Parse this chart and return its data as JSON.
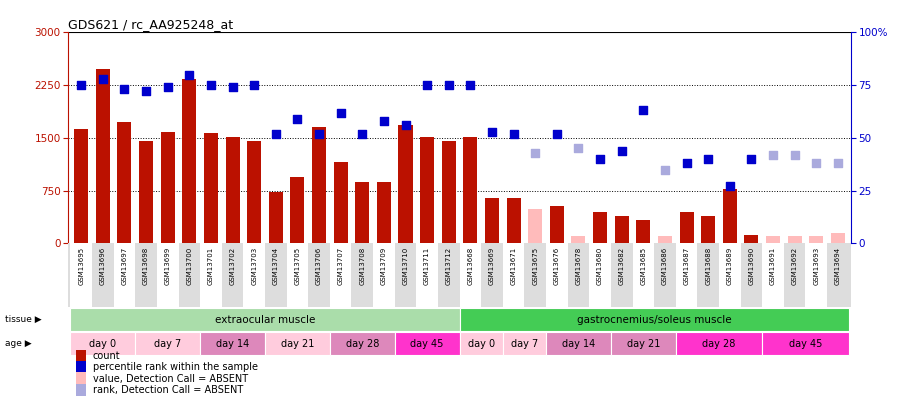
{
  "title": "GDS621 / rc_AA925248_at",
  "samples": [
    "GSM13695",
    "GSM13696",
    "GSM13697",
    "GSM13698",
    "GSM13699",
    "GSM13700",
    "GSM13701",
    "GSM13702",
    "GSM13703",
    "GSM13704",
    "GSM13705",
    "GSM13706",
    "GSM13707",
    "GSM13708",
    "GSM13709",
    "GSM13710",
    "GSM13711",
    "GSM13712",
    "GSM13668",
    "GSM13669",
    "GSM13671",
    "GSM13675",
    "GSM13676",
    "GSM13678",
    "GSM13680",
    "GSM13682",
    "GSM13685",
    "GSM13686",
    "GSM13687",
    "GSM13688",
    "GSM13689",
    "GSM13690",
    "GSM13691",
    "GSM13692",
    "GSM13693",
    "GSM13694"
  ],
  "count_present": [
    1620,
    2480,
    1720,
    1460,
    1580,
    2340,
    1570,
    1520,
    1460,
    730,
    950,
    1660,
    1160,
    870,
    870,
    1680,
    1520,
    1460,
    1520,
    650,
    640,
    null,
    530,
    null,
    440,
    390,
    330,
    null,
    450,
    390,
    780,
    115,
    null,
    null,
    null,
    null
  ],
  "count_absent": [
    null,
    null,
    null,
    null,
    null,
    null,
    null,
    null,
    null,
    null,
    null,
    null,
    null,
    null,
    null,
    null,
    null,
    null,
    null,
    null,
    null,
    490,
    null,
    105,
    null,
    null,
    null,
    110,
    null,
    null,
    null,
    null,
    100,
    110,
    110,
    145
  ],
  "rank_present": [
    75,
    78,
    73,
    72,
    74,
    80,
    75,
    74,
    75,
    52,
    59,
    52,
    62,
    52,
    58,
    56,
    75,
    75,
    75,
    53,
    52,
    null,
    52,
    null,
    40,
    44,
    63,
    null,
    38,
    40,
    27,
    40,
    null,
    null,
    null,
    null
  ],
  "rank_absent": [
    null,
    null,
    null,
    null,
    null,
    null,
    null,
    null,
    null,
    null,
    null,
    null,
    null,
    null,
    null,
    null,
    null,
    null,
    null,
    null,
    null,
    43,
    null,
    45,
    null,
    null,
    null,
    35,
    null,
    null,
    null,
    null,
    42,
    42,
    38,
    38
  ],
  "tissue_groups": [
    {
      "label": "extraocular muscle",
      "start": 0,
      "end": 18,
      "color": "#aaddaa"
    },
    {
      "label": "gastrocnemius/soleus muscle",
      "start": 18,
      "end": 36,
      "color": "#44cc55"
    }
  ],
  "age_groups": [
    {
      "label": "day 0",
      "start": 0,
      "end": 3
    },
    {
      "label": "day 7",
      "start": 3,
      "end": 6
    },
    {
      "label": "day 14",
      "start": 6,
      "end": 9
    },
    {
      "label": "day 21",
      "start": 9,
      "end": 12
    },
    {
      "label": "day 28",
      "start": 12,
      "end": 15
    },
    {
      "label": "day 45",
      "start": 15,
      "end": 18
    },
    {
      "label": "day 0",
      "start": 18,
      "end": 20
    },
    {
      "label": "day 7",
      "start": 20,
      "end": 22
    },
    {
      "label": "day 14",
      "start": 22,
      "end": 25
    },
    {
      "label": "day 21",
      "start": 25,
      "end": 28
    },
    {
      "label": "day 28",
      "start": 28,
      "end": 32
    },
    {
      "label": "day 45",
      "start": 32,
      "end": 36
    }
  ],
  "age_colors": [
    "#ffccdd",
    "#ffccdd",
    "#dd88bb",
    "#ffccdd",
    "#dd88bb",
    "#ff33cc",
    "#ffccdd",
    "#ffccdd",
    "#dd88bb",
    "#dd88bb",
    "#ff33cc",
    "#ff33cc"
  ],
  "ylim_left": [
    0,
    3000
  ],
  "ylim_right": [
    0,
    100
  ],
  "yticks_left": [
    0,
    750,
    1500,
    2250,
    3000
  ],
  "yticks_right": [
    0,
    25,
    50,
    75,
    100
  ],
  "color_count_present": "#bb1100",
  "color_count_absent": "#ffbbbb",
  "color_rank_present": "#0000cc",
  "color_rank_absent": "#aaaadd",
  "legend_items": [
    {
      "label": "count",
      "color": "#bb1100"
    },
    {
      "label": "percentile rank within the sample",
      "color": "#0000cc"
    },
    {
      "label": "value, Detection Call = ABSENT",
      "color": "#ffbbbb"
    },
    {
      "label": "rank, Detection Call = ABSENT",
      "color": "#aaaadd"
    }
  ]
}
